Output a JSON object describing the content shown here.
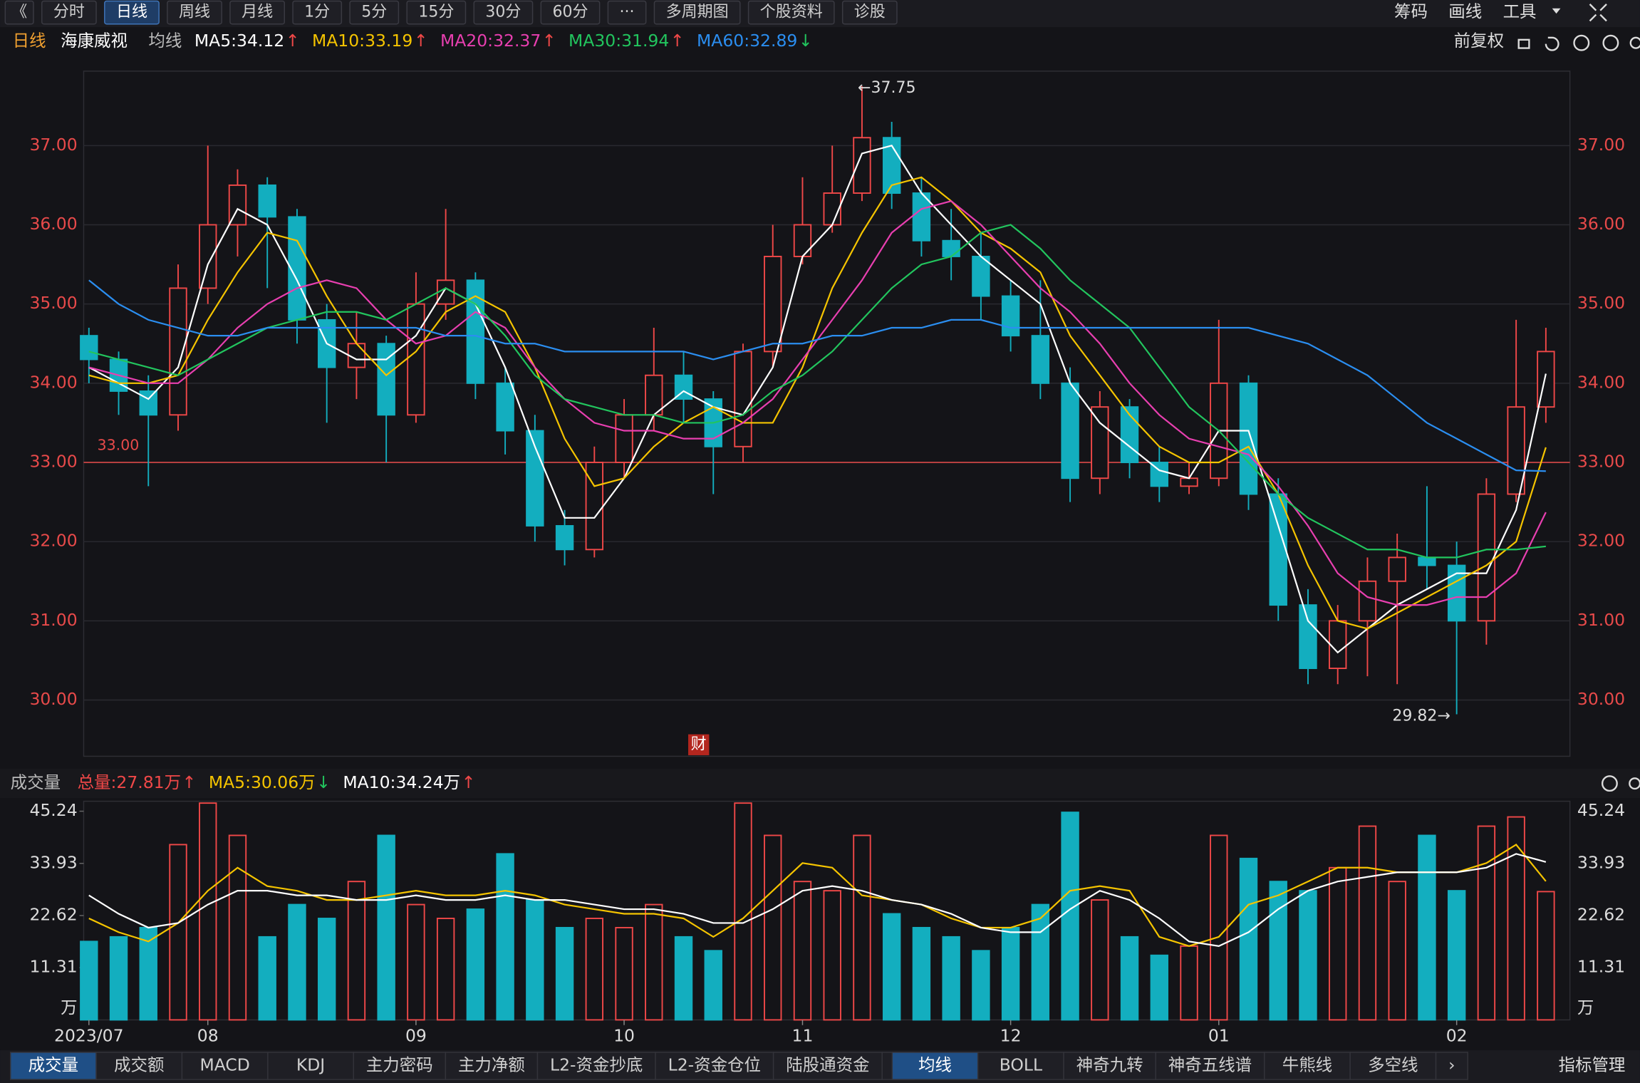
{
  "toolbar": {
    "left": [
      {
        "label": "《"
      },
      {
        "label": "分时"
      },
      {
        "label": "日线",
        "active": true
      },
      {
        "label": "周线"
      },
      {
        "label": "月线"
      },
      {
        "label": "1分"
      },
      {
        "label": "5分"
      },
      {
        "label": "15分"
      },
      {
        "label": "30分"
      },
      {
        "label": "60分"
      },
      {
        "label": "···"
      },
      {
        "label": "多周期图"
      },
      {
        "label": "个股资料"
      },
      {
        "label": "诊股"
      }
    ],
    "right": [
      "筹码",
      "画线",
      "工具"
    ]
  },
  "chart_data": {
    "type": "candlestick",
    "period": "日线",
    "title": "海康威视",
    "ma_title": "均线",
    "adjust_label": "前复权",
    "event_marker": "财",
    "categories": [
      "2023/07",
      null,
      null,
      null,
      "08",
      null,
      null,
      null,
      null,
      null,
      null,
      "09",
      null,
      null,
      null,
      null,
      null,
      null,
      "10",
      null,
      null,
      null,
      null,
      null,
      "11",
      null,
      null,
      null,
      null,
      null,
      null,
      "12",
      null,
      null,
      null,
      null,
      null,
      null,
      "01",
      null,
      null,
      null,
      null,
      null,
      null,
      null,
      "02",
      null,
      null,
      null
    ],
    "open": [
      34.6,
      34.3,
      33.9,
      33.6,
      35.2,
      36.0,
      36.5,
      36.1,
      34.8,
      34.2,
      34.5,
      33.6,
      35.0,
      35.3,
      34.0,
      33.4,
      32.2,
      31.9,
      33.0,
      33.6,
      34.1,
      33.8,
      33.2,
      34.4,
      35.6,
      36.0,
      36.4,
      37.1,
      36.4,
      35.8,
      35.6,
      35.1,
      34.6,
      34.0,
      32.8,
      33.7,
      33.0,
      32.7,
      32.8,
      34.0,
      32.6,
      31.2,
      30.4,
      31.0,
      31.5,
      31.8,
      31.7,
      31.0,
      32.6,
      33.7
    ],
    "high": [
      34.7,
      34.4,
      34.1,
      35.5,
      37.0,
      36.7,
      36.6,
      36.2,
      35.0,
      34.9,
      34.6,
      35.4,
      36.2,
      35.4,
      34.2,
      33.6,
      32.4,
      33.2,
      33.8,
      34.7,
      34.4,
      33.9,
      34.5,
      36.0,
      36.6,
      37.0,
      37.75,
      37.3,
      36.6,
      36.2,
      35.9,
      35.3,
      35.3,
      34.2,
      33.9,
      33.8,
      33.2,
      33.0,
      34.8,
      34.1,
      32.8,
      31.4,
      31.2,
      31.8,
      32.1,
      32.7,
      32.0,
      32.8,
      34.8,
      34.7
    ],
    "low": [
      34.0,
      33.6,
      32.7,
      33.4,
      35.0,
      35.6,
      35.2,
      34.5,
      33.5,
      33.8,
      33.0,
      33.5,
      34.8,
      33.8,
      33.1,
      32.0,
      31.7,
      31.8,
      32.8,
      33.4,
      33.5,
      32.6,
      33.0,
      34.2,
      35.5,
      35.9,
      36.3,
      36.2,
      35.6,
      35.3,
      34.8,
      34.4,
      33.8,
      32.5,
      32.6,
      32.8,
      32.5,
      32.6,
      32.7,
      32.4,
      31.0,
      30.2,
      30.2,
      30.3,
      30.2,
      31.4,
      29.82,
      30.7,
      32.5,
      33.5
    ],
    "close": [
      34.3,
      33.9,
      33.6,
      35.2,
      36.0,
      36.5,
      36.1,
      34.8,
      34.2,
      34.5,
      33.6,
      35.0,
      35.3,
      34.0,
      33.4,
      32.2,
      31.9,
      33.0,
      33.6,
      34.1,
      33.8,
      33.2,
      34.4,
      35.6,
      36.0,
      36.4,
      37.1,
      36.4,
      35.8,
      35.6,
      35.1,
      34.6,
      34.0,
      32.8,
      33.7,
      33.0,
      32.7,
      32.8,
      34.0,
      32.6,
      31.2,
      30.4,
      31.0,
      31.5,
      31.8,
      31.7,
      31.0,
      32.6,
      33.7,
      34.4
    ],
    "up_color": "#f04848",
    "down_color": "#13aebf",
    "axis_color": "#e84a4a",
    "ylim": [
      29.29,
      37.94
    ],
    "yticks": [
      {
        "value": 30,
        "label": "30.00"
      },
      {
        "value": 31,
        "label": "31.00"
      },
      {
        "value": 32,
        "label": "32.00"
      },
      {
        "value": 33,
        "label": "33.00"
      },
      {
        "value": 34,
        "label": "34.00"
      },
      {
        "value": 35,
        "label": "35.00"
      },
      {
        "value": 36,
        "label": "36.00"
      },
      {
        "value": 37,
        "label": "37.00"
      }
    ],
    "grid": true,
    "reference_line": {
      "value": 33,
      "label": "33.00",
      "color": "#e84a4a"
    },
    "annotations": [
      {
        "label": "←37.75",
        "value": 37.75,
        "anchor": "high"
      },
      {
        "label": "29.82→",
        "value": 29.82,
        "anchor": "low"
      }
    ],
    "series": [
      {
        "name": "MA5",
        "legend_label": "MA5:34.12",
        "legend_arrow": "↑",
        "color": "#ffffff",
        "values": [
          34.2,
          34.0,
          33.8,
          34.2,
          35.5,
          36.2,
          36.0,
          35.3,
          34.5,
          34.3,
          34.3,
          34.6,
          35.2,
          35.0,
          34.2,
          33.2,
          32.3,
          32.3,
          32.8,
          33.6,
          33.9,
          33.7,
          33.6,
          34.2,
          35.6,
          36.0,
          36.9,
          37.0,
          36.4,
          36.0,
          35.6,
          35.3,
          35.0,
          34.0,
          33.5,
          33.2,
          32.9,
          32.8,
          33.4,
          33.4,
          32.2,
          31.0,
          30.6,
          30.9,
          31.2,
          31.4,
          31.6,
          31.6,
          32.4,
          34.12
        ]
      },
      {
        "name": "MA10",
        "legend_label": "MA10:33.19",
        "legend_arrow": "↑",
        "color": "#f5c400",
        "values": [
          34.1,
          34.0,
          34.0,
          34.1,
          34.8,
          35.4,
          35.9,
          35.8,
          35.1,
          34.5,
          34.1,
          34.4,
          34.9,
          35.1,
          34.9,
          34.2,
          33.3,
          32.7,
          32.8,
          33.2,
          33.5,
          33.7,
          33.5,
          33.5,
          34.2,
          35.2,
          35.9,
          36.5,
          36.6,
          36.3,
          35.9,
          35.7,
          35.4,
          34.6,
          34.1,
          33.6,
          33.2,
          33.0,
          33.0,
          33.2,
          32.6,
          31.7,
          31.0,
          30.9,
          31.1,
          31.3,
          31.5,
          31.7,
          32.0,
          33.19
        ]
      },
      {
        "name": "MA20",
        "legend_label": "MA20:32.37",
        "legend_arrow": "↑",
        "color": "#e83fb0",
        "values": [
          34.2,
          34.1,
          34.0,
          34.0,
          34.3,
          34.7,
          35.0,
          35.2,
          35.3,
          35.2,
          34.8,
          34.5,
          34.6,
          34.9,
          34.7,
          34.2,
          33.8,
          33.5,
          33.4,
          33.4,
          33.3,
          33.3,
          33.5,
          33.8,
          34.3,
          34.8,
          35.3,
          35.9,
          36.2,
          36.3,
          36.0,
          35.6,
          35.2,
          34.9,
          34.5,
          34.0,
          33.6,
          33.3,
          33.2,
          33.1,
          32.7,
          32.2,
          31.6,
          31.3,
          31.2,
          31.2,
          31.3,
          31.3,
          31.6,
          32.37
        ]
      },
      {
        "name": "MA30",
        "legend_label": "MA30:31.94",
        "legend_arrow": "↑",
        "color": "#22c55e",
        "values": [
          34.4,
          34.3,
          34.2,
          34.1,
          34.3,
          34.5,
          34.7,
          34.8,
          34.9,
          34.9,
          34.8,
          35.0,
          35.2,
          35.0,
          34.6,
          34.1,
          33.8,
          33.7,
          33.6,
          33.6,
          33.5,
          33.5,
          33.6,
          33.9,
          34.1,
          34.4,
          34.8,
          35.2,
          35.5,
          35.6,
          35.9,
          36.0,
          35.7,
          35.3,
          35.0,
          34.7,
          34.2,
          33.7,
          33.4,
          33.0,
          32.6,
          32.3,
          32.1,
          31.9,
          31.9,
          31.8,
          31.8,
          31.9,
          31.9,
          31.94
        ]
      },
      {
        "name": "MA60",
        "legend_label": "MA60:32.89",
        "legend_arrow": "↓",
        "color": "#2b8ef0",
        "values": [
          35.3,
          35.0,
          34.8,
          34.7,
          34.6,
          34.6,
          34.7,
          34.7,
          34.7,
          34.7,
          34.7,
          34.7,
          34.6,
          34.6,
          34.5,
          34.5,
          34.4,
          34.4,
          34.4,
          34.4,
          34.4,
          34.3,
          34.4,
          34.5,
          34.5,
          34.6,
          34.6,
          34.7,
          34.7,
          34.8,
          34.8,
          34.7,
          34.7,
          34.7,
          34.7,
          34.7,
          34.7,
          34.7,
          34.7,
          34.7,
          34.6,
          34.5,
          34.3,
          34.1,
          33.8,
          33.5,
          33.3,
          33.1,
          32.9,
          32.89
        ]
      }
    ],
    "volume": {
      "type": "bar",
      "title": "成交量",
      "unit": "万",
      "total_label": "总量:27.81万",
      "total_arrow": "↑",
      "values": [
        17,
        18,
        20,
        38,
        47,
        40,
        18,
        25,
        22,
        30,
        40,
        25,
        22,
        24,
        36,
        26,
        20,
        22,
        20,
        25,
        18,
        15,
        47,
        40,
        30,
        28,
        40,
        23,
        20,
        18,
        15,
        20,
        25,
        45,
        26,
        18,
        14,
        16,
        40,
        35,
        30,
        28,
        33,
        42,
        30,
        40,
        28,
        42,
        44,
        27.81
      ],
      "ylim": [
        0,
        47.4
      ],
      "yticks": [
        11.31,
        22.62,
        33.93,
        45.24
      ],
      "series": [
        {
          "name": "MA5",
          "legend_label": "MA5:30.06万",
          "legend_arrow": "↓",
          "color": "#f5c400",
          "values": [
            22,
            19,
            17,
            21,
            28,
            33,
            29,
            28,
            26,
            26,
            27,
            28,
            27,
            27,
            28,
            27,
            25,
            24,
            23,
            23,
            22,
            18,
            22,
            28,
            34,
            33,
            27,
            26,
            25,
            22,
            20,
            20,
            22,
            28,
            29,
            28,
            18,
            16,
            18,
            25,
            27,
            30,
            33,
            33,
            32,
            32,
            32,
            34,
            38,
            30.06
          ]
        },
        {
          "name": "MA10",
          "legend_label": "MA10:34.24万",
          "legend_arrow": "↑",
          "color": "#ffffff",
          "values": [
            27,
            23,
            20,
            21,
            25,
            28,
            28,
            27,
            27,
            26,
            26,
            27,
            26,
            26,
            27,
            26,
            26,
            25,
            24,
            24,
            23,
            21,
            21,
            24,
            28,
            29,
            28,
            26,
            25,
            23,
            20,
            19,
            19,
            24,
            28,
            26,
            22,
            17,
            16,
            19,
            24,
            28,
            30,
            31,
            32,
            32,
            32,
            33,
            36,
            34.24
          ]
        }
      ]
    }
  },
  "bottom_tabs": {
    "left": [
      {
        "label": "成交量",
        "active": true
      },
      {
        "label": "成交额"
      },
      {
        "label": "MACD"
      },
      {
        "label": "KDJ"
      },
      {
        "label": "主力密码"
      },
      {
        "label": "主力净额"
      },
      {
        "label": "L2-资金抄底"
      },
      {
        "label": "L2-资金仓位"
      },
      {
        "label": "陆股通资金"
      },
      {
        "label": "›"
      }
    ],
    "right": [
      {
        "label": "均线",
        "active": true
      },
      {
        "label": "BOLL"
      },
      {
        "label": "神奇九转"
      },
      {
        "label": "神奇五线谱"
      },
      {
        "label": "牛熊线"
      },
      {
        "label": "多空线"
      },
      {
        "label": "›"
      }
    ],
    "manage": "指标管理"
  }
}
